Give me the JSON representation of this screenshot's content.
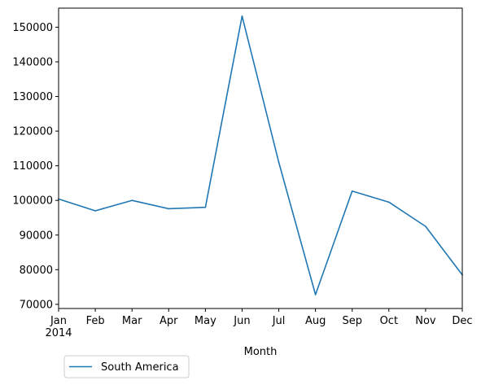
{
  "chart_data": {
    "type": "line",
    "title": "",
    "xlabel": "Month",
    "ylabel": "",
    "x": [
      "Jan\n2014",
      "Feb",
      "Mar",
      "Apr",
      "May",
      "Jun",
      "Jul",
      "Aug",
      "Sep",
      "Oct",
      "Nov",
      "Dec"
    ],
    "series": [
      {
        "name": "South America",
        "color": "#1f77b4",
        "values": [
          100400,
          97000,
          100000,
          97600,
          98000,
          153200,
          111000,
          72800,
          102700,
          99500,
          92500,
          78500
        ]
      }
    ],
    "yticks": [
      70000,
      80000,
      90000,
      100000,
      110000,
      120000,
      130000,
      140000,
      150000
    ],
    "ylim": [
      68800,
      155500
    ],
    "grid": false,
    "legend_position": "bottom-left, below axes"
  }
}
